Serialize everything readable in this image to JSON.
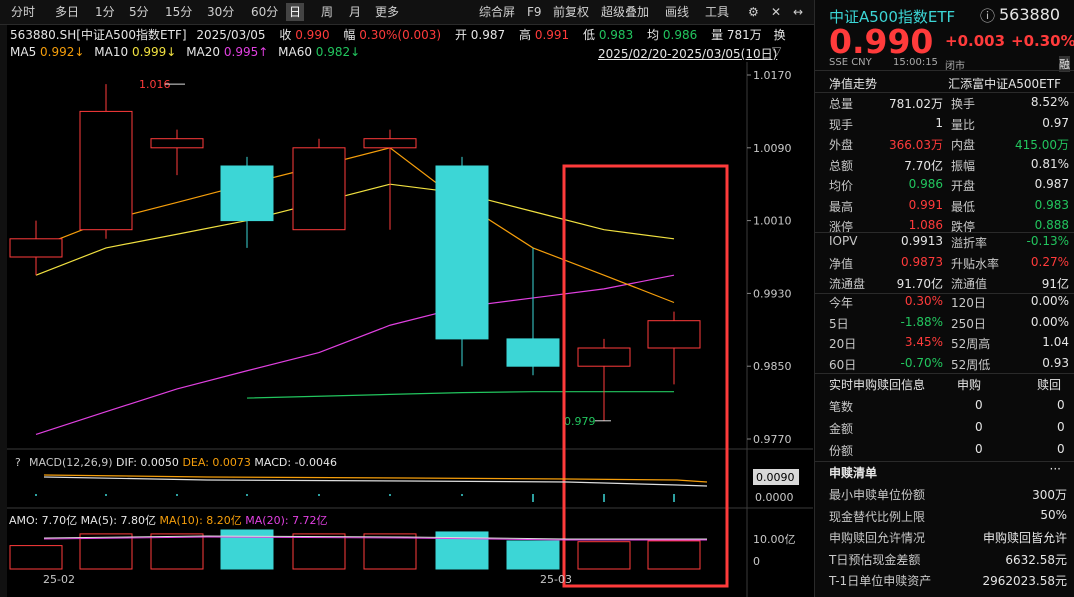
{
  "toolbar": {
    "periods": [
      "分时",
      "多日",
      "1分",
      "5分",
      "15分",
      "30分",
      "60分",
      "日",
      "周",
      "月",
      "更多"
    ],
    "active_period": "日",
    "tools": [
      "综合屏",
      "F9",
      "前复权",
      "超级叠加",
      "画线",
      "工具"
    ]
  },
  "quote_bar": {
    "code_name": "563880.SH[中证A500指数ETF]",
    "date": "2025/03/05",
    "close_label": "收",
    "close": "0.990",
    "change_label": "幅",
    "change_pct": "0.30%",
    "change_abs": "(0.003)",
    "open_label": "开",
    "open": "0.987",
    "high_label": "高",
    "high": "0.991",
    "low_label": "低",
    "low": "0.983",
    "avg_label": "均",
    "avg": "0.986",
    "vol_label": "量",
    "vol": "781万",
    "trailing": "换"
  },
  "ma_bar": {
    "ma5_label": "MA5",
    "ma5": "0.992↓",
    "ma10_label": "MA10",
    "ma10": "0.999↓",
    "ma20_label": "MA20",
    "ma20": "0.995↑",
    "ma60_label": "MA60",
    "ma60": "0.982↓",
    "range": "2025/02/20-2025/03/05(10日)"
  },
  "colors": {
    "up": "#ff3b3b",
    "down": "#3cd6d6",
    "ma5": "#f59e0b",
    "ma10": "#f0e040",
    "ma20": "#e040e0",
    "ma60": "#22c55e",
    "highlight": "#ff3b3b"
  },
  "chart_data": {
    "type": "candlestick",
    "price_axis_ticks": [
      "1.0170",
      "1.0090",
      "1.0010",
      "0.9930",
      "0.9850",
      "0.9770"
    ],
    "candles": [
      {
        "o": 0.997,
        "c": 0.999,
        "h": 1.001,
        "l": 0.995
      },
      {
        "o": 1.0,
        "c": 1.013,
        "h": 1.016,
        "l": 0.999
      },
      {
        "o": 1.009,
        "c": 1.01,
        "h": 1.011,
        "l": 1.006
      },
      {
        "o": 1.007,
        "c": 1.001,
        "h": 1.008,
        "l": 0.998
      },
      {
        "o": 1.0,
        "c": 1.009,
        "h": 1.01,
        "l": 1.0
      },
      {
        "o": 1.009,
        "c": 1.01,
        "h": 1.011,
        "l": 1.0
      },
      {
        "o": 1.007,
        "c": 0.988,
        "h": 1.008,
        "l": 0.985
      },
      {
        "o": 0.988,
        "c": 0.985,
        "h": 0.998,
        "l": 0.984
      },
      {
        "o": 0.985,
        "c": 0.987,
        "h": 0.988,
        "l": 0.979
      },
      {
        "o": 0.987,
        "c": 0.99,
        "h": 0.991,
        "l": 0.983
      }
    ],
    "annotations": {
      "high": "1.016",
      "low": "0.979"
    },
    "ma5": [
      0.998,
      1.001,
      1.003,
      1.005,
      1.007,
      1.009,
      1.003,
      0.998,
      0.995,
      0.992
    ],
    "ma10": [
      0.995,
      0.998,
      0.9995,
      1.001,
      1.003,
      1.005,
      1.004,
      1.002,
      1.0,
      0.999
    ],
    "ma20": [
      0.9775,
      0.98,
      0.9825,
      0.9845,
      0.9865,
      0.9895,
      0.9915,
      0.9925,
      0.9935,
      0.995
    ],
    "ma60": [
      null,
      null,
      null,
      0.9815,
      0.9817,
      0.9819,
      0.9821,
      0.9822,
      0.9822,
      0.9822
    ],
    "x_labels": [
      "25-02",
      "25-03"
    ],
    "macd": {
      "label": "MACD(12,26,9)",
      "dif_label": "DIF:",
      "dif": "0.0050",
      "dea_label": "DEA:",
      "dea": "0.0073",
      "macd_label": "MACD:",
      "macd": "-0.0046",
      "axis_ticks": [
        "0.0090",
        "0.0000"
      ]
    },
    "amo": {
      "label": "AMO:",
      "value": "7.70亿",
      "ma5_label": "MA(5):",
      "ma5": "7.80亿",
      "ma10_label": "MA(10):",
      "ma10": "8.20亿",
      "ma20_label": "MA(20):",
      "ma20": "7.72亿",
      "axis_ticks": [
        "10.00亿",
        "0"
      ]
    }
  },
  "right_panel": {
    "title": "中证A500指数ETF",
    "code": "563880",
    "price": "0.990",
    "change": "+0.003",
    "change_pct": "+0.30%",
    "exchange": "SSE",
    "currency": "CNY",
    "time": "15:00:15",
    "status": "闭市",
    "tag": "融",
    "subtitle_left": "净值走势",
    "subtitle_right": "汇添富中证A500ETF",
    "stats": [
      {
        "l1": "总量",
        "v1": "781.02万",
        "l2": "换手",
        "v2": "8.52%",
        "c1": "white",
        "c2": "white"
      },
      {
        "l1": "现手",
        "v1": "1",
        "l2": "量比",
        "v2": "0.97",
        "c1": "white",
        "c2": "white"
      },
      {
        "l1": "外盘",
        "v1": "366.03万",
        "l2": "内盘",
        "v2": "415.00万",
        "c1": "red",
        "c2": "green"
      },
      {
        "l1": "总额",
        "v1": "7.70亿",
        "l2": "振幅",
        "v2": "0.81%",
        "c1": "white",
        "c2": "white"
      },
      {
        "l1": "均价",
        "v1": "0.986",
        "l2": "开盘",
        "v2": "0.987",
        "c1": "green",
        "c2": "white"
      },
      {
        "l1": "最高",
        "v1": "0.991",
        "l2": "最低",
        "v2": "0.983",
        "c1": "red",
        "c2": "green"
      },
      {
        "l1": "涨停",
        "v1": "1.086",
        "l2": "跌停",
        "v2": "0.888",
        "c1": "red",
        "c2": "green"
      }
    ],
    "iopv": [
      {
        "l1": "IOPV",
        "v1": "0.9913",
        "l2": "溢折率",
        "v2": "-0.13%",
        "c1": "white",
        "c2": "green"
      },
      {
        "l1": "净值",
        "v1": "0.9873",
        "l2": "升贴水率",
        "v2": "0.27%",
        "c1": "red",
        "c2": "red"
      },
      {
        "l1": "流通盘",
        "v1": "91.70亿",
        "l2": "流通值",
        "v2": "91亿",
        "c1": "white",
        "c2": "white"
      }
    ],
    "perf": [
      {
        "l1": "今年",
        "v1": "0.30%",
        "l2": "120日",
        "v2": "0.00%",
        "c1": "red",
        "c2": "white"
      },
      {
        "l1": "5日",
        "v1": "-1.88%",
        "l2": "250日",
        "v2": "0.00%",
        "c1": "green",
        "c2": "white"
      },
      {
        "l1": "20日",
        "v1": "3.45%",
        "l2": "52周高",
        "v2": "1.04",
        "c1": "red",
        "c2": "white"
      },
      {
        "l1": "60日",
        "v1": "-0.70%",
        "l2": "52周低",
        "v2": "0.93",
        "c1": "green",
        "c2": "white"
      }
    ],
    "realtime": {
      "title": "实时申购赎回信息",
      "col1": "申购",
      "col2": "赎回",
      "rows": [
        {
          "label": "笔数",
          "a": "0",
          "b": "0"
        },
        {
          "label": "金额",
          "a": "0",
          "b": "0"
        },
        {
          "label": "份额",
          "a": "0",
          "b": "0"
        }
      ]
    },
    "redeem_list": {
      "title": "申赎清单",
      "more": "···",
      "rows": [
        {
          "label": "最小申赎单位份额",
          "value": "300万"
        },
        {
          "label": "现金替代比例上限",
          "value": "50%"
        },
        {
          "label": "申购赎回允许情况",
          "value": "申购赎回皆允许"
        },
        {
          "label": "T日预估现金差额",
          "value": "6632.58元"
        },
        {
          "label": "T-1日单位申赎资产",
          "value": "2962023.58元"
        }
      ]
    }
  }
}
